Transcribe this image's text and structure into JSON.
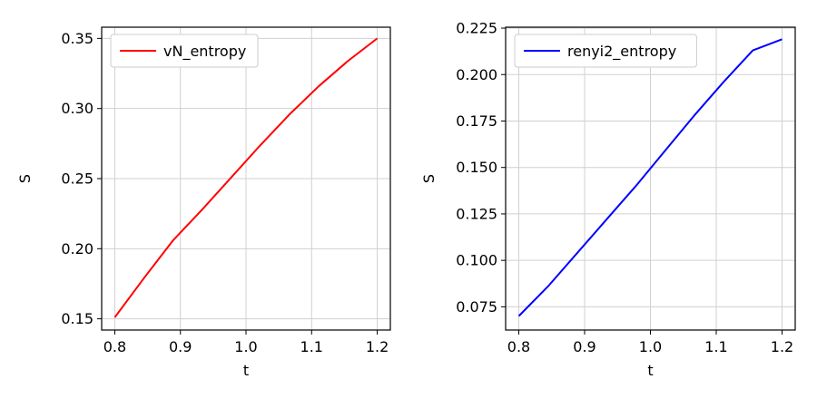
{
  "chart_data": [
    {
      "type": "line",
      "xlabel": "t",
      "ylabel": "S",
      "xlim": [
        0.78,
        1.22
      ],
      "ylim": [
        0.142,
        0.358
      ],
      "xticks": [
        "0.8",
        "0.9",
        "1.0",
        "1.1",
        "1.2"
      ],
      "yticks": [
        "0.15",
        "0.20",
        "0.25",
        "0.30",
        "0.35"
      ],
      "grid": true,
      "legend_position": "upper-left",
      "series": [
        {
          "name": "vN_entropy",
          "color": "#ff0000",
          "x": [
            0.8,
            0.8444,
            0.8889,
            0.9333,
            0.9778,
            1.0222,
            1.0667,
            1.1111,
            1.1556,
            1.2
          ],
          "y": [
            0.151,
            0.179,
            0.206,
            0.228,
            0.251,
            0.274,
            0.296,
            0.316,
            0.334,
            0.35
          ]
        }
      ]
    },
    {
      "type": "line",
      "xlabel": "t",
      "ylabel": "S",
      "xlim": [
        0.78,
        1.22
      ],
      "ylim": [
        0.0625,
        0.2255
      ],
      "xticks": [
        "0.8",
        "0.9",
        "1.0",
        "1.1",
        "1.2"
      ],
      "yticks": [
        "0.075",
        "0.100",
        "0.125",
        "0.150",
        "0.175",
        "0.200",
        "0.225"
      ],
      "grid": true,
      "legend_position": "upper-left",
      "series": [
        {
          "name": "renyi2_entropy",
          "color": "#0000ff",
          "x": [
            0.8,
            0.8444,
            0.8889,
            0.9333,
            0.9778,
            1.0222,
            1.0667,
            1.1111,
            1.1556,
            1.2
          ],
          "y": [
            0.07,
            0.086,
            0.104,
            0.122,
            0.14,
            0.159,
            0.178,
            0.196,
            0.213,
            0.219
          ]
        }
      ]
    }
  ]
}
